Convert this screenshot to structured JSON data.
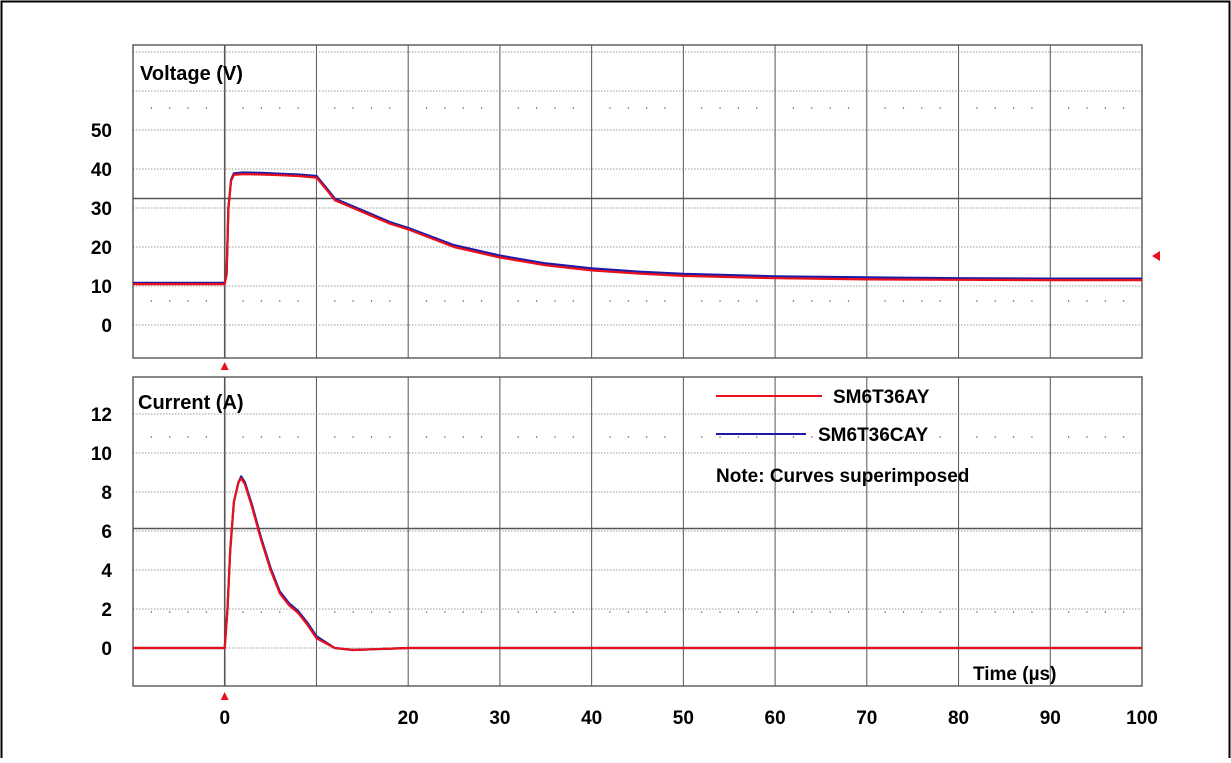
{
  "chart_data": [
    {
      "type": "line",
      "title": "Voltage (V)",
      "xlabel": "",
      "ylabel": "",
      "xlim": [
        -10,
        100
      ],
      "ylim": [
        -10,
        60
      ],
      "y_ticks": [
        0,
        10,
        20,
        30,
        40,
        50
      ],
      "grid": true,
      "series": [
        {
          "name": "SM6T36AY",
          "color": "#e8101a",
          "x": [
            -10,
            -5,
            0,
            0.2,
            0.4,
            0.7,
            1,
            2,
            4,
            6,
            8,
            10,
            11,
            12,
            13,
            14,
            16,
            18,
            20,
            25,
            30,
            35,
            40,
            45,
            50,
            60,
            70,
            80,
            90,
            100
          ],
          "y": [
            10.5,
            10.5,
            10.5,
            13,
            30,
            37,
            38.5,
            38.7,
            38.6,
            38.4,
            38.2,
            37.8,
            35,
            32,
            31,
            30,
            28,
            26,
            24.5,
            20,
            17.3,
            15.3,
            14,
            13.2,
            12.6,
            12.0,
            11.7,
            11.6,
            11.5,
            11.5
          ]
        },
        {
          "name": "SM6T36CAY",
          "color": "#1c1aa8",
          "x": [
            -10,
            -5,
            0,
            0.2,
            0.4,
            0.7,
            1,
            2,
            4,
            6,
            8,
            10,
            11,
            12,
            13,
            14,
            16,
            18,
            20,
            25,
            30,
            35,
            40,
            45,
            50,
            60,
            70,
            80,
            90,
            100
          ],
          "y": [
            10.8,
            10.8,
            10.8,
            13,
            30,
            37.3,
            38.9,
            39.1,
            39,
            38.8,
            38.6,
            38.2,
            35.4,
            32.4,
            31.4,
            30.4,
            28.4,
            26.4,
            24.9,
            20.5,
            17.8,
            15.8,
            14.5,
            13.7,
            13.1,
            12.5,
            12.2,
            12.0,
            11.9,
            11.9
          ]
        }
      ]
    },
    {
      "type": "line",
      "title": "Current (A)",
      "xlabel": "Time (µs)",
      "ylabel": "",
      "xlim": [
        -10,
        100
      ],
      "ylim": [
        -2,
        14
      ],
      "x_ticks": [
        0,
        20,
        30,
        40,
        50,
        60,
        70,
        80,
        90,
        100
      ],
      "y_ticks": [
        0,
        2,
        4,
        6,
        8,
        10,
        12
      ],
      "grid": true,
      "series": [
        {
          "name": "SM6T36AY",
          "color": "#e8101a",
          "x": [
            -10,
            -5,
            0,
            0.3,
            0.6,
            1,
            1.5,
            1.8,
            2.2,
            3,
            4,
            5,
            6,
            7,
            8,
            9,
            10,
            12,
            14,
            20,
            40,
            60,
            80,
            100
          ],
          "y": [
            0,
            0,
            0,
            2,
            5,
            7.5,
            8.5,
            8.7,
            8.4,
            7.2,
            5.5,
            4,
            2.8,
            2.2,
            1.8,
            1.2,
            0.5,
            0,
            -0.1,
            0,
            0,
            0,
            0,
            0
          ]
        },
        {
          "name": "SM6T36CAY",
          "color": "#1c1aa8",
          "x": [
            -10,
            -5,
            0,
            0.3,
            0.6,
            1,
            1.5,
            1.8,
            2.2,
            3,
            4,
            5,
            6,
            7,
            8,
            9,
            10,
            12,
            14,
            20,
            40,
            60,
            80,
            100
          ],
          "y": [
            0,
            0,
            0,
            2,
            5,
            7.5,
            8.5,
            8.8,
            8.5,
            7.3,
            5.6,
            4.1,
            2.9,
            2.3,
            1.9,
            1.3,
            0.6,
            0,
            -0.1,
            0,
            0,
            0,
            0,
            0
          ]
        }
      ]
    }
  ],
  "legend": {
    "placement": "top-right",
    "entries": [
      "SM6T36AY",
      "SM6T36CAY"
    ],
    "note": "Note: Curves superimposed"
  },
  "colors": {
    "grid_major": "#555555",
    "grid_minor": "#777777",
    "trigger_marker": "#e8101a"
  }
}
